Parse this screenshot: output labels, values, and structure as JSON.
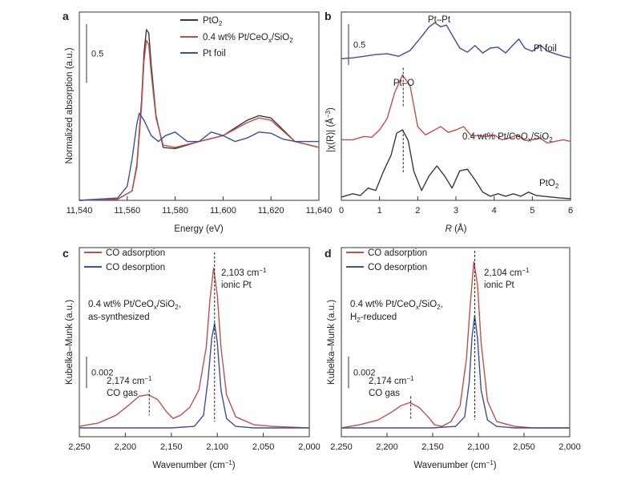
{
  "colors": {
    "black": "#3a3a3a",
    "red": "#c0504d",
    "blue": "#3b4f9a",
    "axis": "#333333"
  },
  "chart_data": [
    {
      "panel": "a",
      "type": "line",
      "xlabel": "Energy (eV)",
      "ylabel": "Normalized absorption (a.u.)",
      "xlim": [
        11540,
        11640
      ],
      "ylim": [
        0,
        1.6
      ],
      "xticks": [
        11540,
        11560,
        11580,
        11600,
        11620,
        11640
      ],
      "xtick_labels": [
        "11,540",
        "11,560",
        "11,580",
        "11,600",
        "11,620",
        "11,640"
      ],
      "scale_bar": "0.5",
      "scale_bar_value": 0.5,
      "legend": [
        "PtO2",
        "0.4 wt% Pt/CeOx/SiO2",
        "Pt foil"
      ],
      "series": [
        {
          "name": "PtO2",
          "color": "black",
          "x": [
            11540,
            11556,
            11562,
            11564,
            11566,
            11567,
            11568,
            11569,
            11570,
            11572,
            11575,
            11580,
            11590,
            11600,
            11610,
            11615,
            11620,
            11625,
            11630,
            11640
          ],
          "y": [
            0.0,
            0.01,
            0.08,
            0.3,
            0.85,
            1.25,
            1.45,
            1.42,
            1.15,
            0.72,
            0.45,
            0.44,
            0.5,
            0.55,
            0.68,
            0.72,
            0.7,
            0.6,
            0.5,
            0.45
          ]
        },
        {
          "name": "0.4 wt% Pt/CeOx/SiO2",
          "color": "red",
          "x": [
            11540,
            11556,
            11562,
            11564,
            11566,
            11567,
            11568,
            11569,
            11570,
            11572,
            11575,
            11580,
            11590,
            11600,
            11610,
            11615,
            11620,
            11625,
            11630,
            11640
          ],
          "y": [
            0.0,
            0.01,
            0.08,
            0.28,
            0.8,
            1.18,
            1.36,
            1.32,
            1.08,
            0.7,
            0.47,
            0.45,
            0.5,
            0.55,
            0.66,
            0.7,
            0.68,
            0.59,
            0.5,
            0.45
          ]
        },
        {
          "name": "Pt foil",
          "color": "blue",
          "x": [
            11540,
            11556,
            11560,
            11562,
            11564,
            11565,
            11567,
            11570,
            11573,
            11576,
            11580,
            11585,
            11590,
            11595,
            11600,
            11605,
            11610,
            11615,
            11620,
            11625,
            11630,
            11640
          ],
          "y": [
            0.0,
            0.02,
            0.12,
            0.35,
            0.65,
            0.74,
            0.68,
            0.55,
            0.5,
            0.55,
            0.58,
            0.5,
            0.5,
            0.58,
            0.55,
            0.5,
            0.53,
            0.58,
            0.57,
            0.52,
            0.5,
            0.5
          ]
        }
      ]
    },
    {
      "panel": "b",
      "type": "line",
      "xlabel": "R (Å)",
      "ylabel": "|χ(R)| (Å−3)",
      "xlim": [
        0,
        6
      ],
      "ylim": [
        0,
        2.3
      ],
      "xticks": [
        0,
        1,
        2,
        3,
        4,
        5,
        6
      ],
      "xtick_labels": [
        "0",
        "1",
        "2",
        "3",
        "4",
        "5",
        "6"
      ],
      "scale_bar": "0.5",
      "scale_bar_value": 0.5,
      "series": [
        {
          "name": "Pt foil",
          "color": "blue",
          "x": [
            0,
            0.3,
            0.6,
            0.9,
            1.2,
            1.5,
            1.8,
            2.1,
            2.3,
            2.45,
            2.6,
            2.75,
            2.9,
            3.1,
            3.3,
            3.5,
            3.7,
            3.9,
            4.1,
            4.3,
            4.5,
            4.65,
            4.8,
            5.0,
            5.2,
            5.4,
            5.6,
            5.8,
            6.0
          ],
          "y": [
            1.73,
            1.74,
            1.76,
            1.78,
            1.79,
            1.76,
            1.83,
            2.0,
            2.12,
            2.17,
            2.12,
            2.14,
            2.02,
            1.86,
            1.81,
            1.89,
            1.8,
            1.86,
            1.87,
            1.8,
            1.9,
            1.97,
            1.86,
            1.82,
            1.9,
            1.82,
            1.79,
            1.76,
            1.74
          ]
        },
        {
          "name": "0.4 wt% Pt/CeOx/SiO2",
          "color": "red",
          "x": [
            0,
            0.3,
            0.6,
            0.8,
            1.0,
            1.2,
            1.4,
            1.6,
            1.8,
            2.0,
            2.2,
            2.4,
            2.6,
            2.8,
            3.0,
            3.2,
            3.4,
            3.6,
            3.8,
            4.0,
            4.2,
            4.4,
            4.6,
            4.8,
            5.0,
            5.2,
            5.4,
            5.6,
            5.8,
            6.0
          ],
          "y": [
            0.74,
            0.74,
            0.78,
            0.77,
            0.86,
            1.0,
            1.32,
            1.53,
            1.4,
            0.9,
            0.8,
            0.85,
            0.9,
            0.83,
            0.86,
            0.9,
            0.79,
            0.79,
            0.78,
            0.8,
            0.74,
            0.76,
            0.8,
            0.73,
            0.74,
            0.76,
            0.7,
            0.72,
            0.74,
            0.72
          ]
        },
        {
          "name": "PtO2",
          "color": "black",
          "x": [
            0,
            0.3,
            0.5,
            0.7,
            0.9,
            1.1,
            1.3,
            1.45,
            1.6,
            1.75,
            1.9,
            2.1,
            2.3,
            2.5,
            2.7,
            2.9,
            3.1,
            3.3,
            3.5,
            3.7,
            3.9,
            4.1,
            4.3,
            4.5,
            4.7,
            4.9,
            5.1,
            5.3,
            5.5,
            5.7,
            6.0
          ],
          "y": [
            0.04,
            0.08,
            0.06,
            0.15,
            0.12,
            0.35,
            0.55,
            0.82,
            0.86,
            0.73,
            0.35,
            0.12,
            0.3,
            0.42,
            0.3,
            0.15,
            0.36,
            0.38,
            0.25,
            0.1,
            0.05,
            0.08,
            0.05,
            0.08,
            0.05,
            0.1,
            0.06,
            0.05,
            0.04,
            0.03,
            0.02
          ]
        }
      ]
    },
    {
      "panel": "c",
      "type": "line",
      "xlabel": "Wavenumber (cm−1)",
      "ylabel": "Kubelka–Munk (a.u.)",
      "xlim": [
        2250,
        2000
      ],
      "ylim": [
        0,
        0.0115
      ],
      "xticks": [
        2250,
        2200,
        2150,
        2100,
        2050,
        2000
      ],
      "xtick_labels": [
        "2,250",
        "2,200",
        "2,150",
        "2,100",
        "2,050",
        "2,000"
      ],
      "scale_bar": "0.002",
      "scale_bar_value": 0.002,
      "legend": [
        "CO adsorption",
        "CO desorption"
      ],
      "series": [
        {
          "name": "CO adsorption",
          "color": "red",
          "x": [
            2250,
            2230,
            2210,
            2195,
            2185,
            2175,
            2165,
            2155,
            2148,
            2140,
            2130,
            2120,
            2112,
            2108,
            2104,
            2100,
            2096,
            2090,
            2080,
            2060,
            2040,
            2000
          ],
          "y": [
            0.0002,
            0.0004,
            0.0009,
            0.0016,
            0.0021,
            0.0022,
            0.0019,
            0.0011,
            0.0007,
            0.0009,
            0.0014,
            0.0025,
            0.0052,
            0.0082,
            0.0102,
            0.0085,
            0.0052,
            0.0022,
            0.0008,
            0.0003,
            0.0002,
            0.0001
          ]
        },
        {
          "name": "CO desorption",
          "color": "blue",
          "x": [
            2250,
            2200,
            2150,
            2125,
            2115,
            2110,
            2106,
            2103,
            2100,
            2096,
            2090,
            2080,
            2060,
            2000
          ],
          "y": [
            0.0001,
            0.0001,
            0.0001,
            0.0002,
            0.0009,
            0.0032,
            0.0058,
            0.0067,
            0.0055,
            0.0025,
            0.0007,
            0.0002,
            0.0001,
            0.0001
          ]
        }
      ]
    },
    {
      "panel": "d",
      "type": "line",
      "xlabel": "Wavenumber (cm−1)",
      "ylabel": "Kubelka–Munk (a.u.)",
      "xlim": [
        2250,
        2000
      ],
      "ylim": [
        0,
        0.0115
      ],
      "xticks": [
        2250,
        2200,
        2150,
        2100,
        2050,
        2000
      ],
      "xtick_labels": [
        "2,250",
        "2,200",
        "2,150",
        "2,100",
        "2,050",
        "2,000"
      ],
      "scale_bar": "0.002",
      "scale_bar_value": 0.002,
      "legend": [
        "CO adsorption",
        "CO desorption"
      ],
      "series": [
        {
          "name": "CO adsorption",
          "color": "red",
          "x": [
            2250,
            2230,
            2210,
            2195,
            2185,
            2175,
            2165,
            2155,
            2148,
            2140,
            2130,
            2120,
            2113,
            2109,
            2105,
            2101,
            2097,
            2090,
            2080,
            2060,
            2040,
            2000
          ],
          "y": [
            0.0001,
            0.0003,
            0.0006,
            0.0011,
            0.0015,
            0.0017,
            0.0014,
            0.0008,
            0.0003,
            0.0002,
            0.0005,
            0.0015,
            0.0045,
            0.0078,
            0.0106,
            0.0092,
            0.0055,
            0.0018,
            0.0005,
            0.0002,
            0.0001,
            0.0001
          ]
        },
        {
          "name": "CO desorption",
          "color": "blue",
          "x": [
            2250,
            2200,
            2150,
            2125,
            2115,
            2110,
            2107,
            2104,
            2101,
            2097,
            2090,
            2080,
            2060,
            2000
          ],
          "y": [
            0.0001,
            0.0001,
            0.0001,
            0.0002,
            0.0008,
            0.003,
            0.0058,
            0.0072,
            0.0058,
            0.0025,
            0.0006,
            0.0002,
            0.0001,
            0.0001
          ]
        }
      ]
    }
  ],
  "labels": {
    "a": {
      "letter": "a",
      "legend": [
        {
          "main": "PtO",
          "sub": "2",
          "tail": ""
        },
        {
          "main": "0.4 wt% Pt/CeO",
          "sub": "x",
          "tail": "/SiO",
          "sub2": "2"
        },
        {
          "main": "Pt foil",
          "sub": "",
          "tail": ""
        }
      ]
    },
    "b": {
      "letter": "b",
      "pt_pt": "Pt–Pt",
      "pt_o": "Pt–O",
      "pt_foil": "Pt foil",
      "sample_main": "0.4 wt% Pt/CeO",
      "sample_sub": "x",
      "sample_tail": "/SiO",
      "sample_sub2": "2",
      "pto2_main": "PtO",
      "pto2_sub": "2",
      "xlabel_italic": "R",
      "xlabel_rest": " (Å)",
      "ylabel_text": "|χ(R)| (Å",
      "ylabel_sup": "−3",
      "ylabel_end": ")"
    },
    "c": {
      "letter": "c",
      "legend_ads": "CO adsorption",
      "legend_des": "CO desorption",
      "peak_main": "2,103 cm",
      "peak_sup": "−1",
      "peak_line2": "ionic Pt",
      "sample_line1_main": "0.4 wt% Pt/CeO",
      "sample_line1_sub": "x",
      "sample_line1_tail": "/SiO",
      "sample_line1_sub2": "2",
      "sample_line1_end": ",",
      "sample_line2": "as-synthesized",
      "gas_main": "2,174 cm",
      "gas_sup": "−1",
      "gas_line2": "CO gas",
      "xlabel_main": "Wavenumber (cm",
      "xlabel_sup": "−1",
      "xlabel_end": ")"
    },
    "d": {
      "letter": "d",
      "legend_ads": "CO adsorption",
      "legend_des": "CO desorption",
      "peak_main": "2,104 cm",
      "peak_sup": "−1",
      "peak_line2": "ionic Pt",
      "sample_line1_main": "0.4 wt% Pt/CeO",
      "sample_line1_sub": "x",
      "sample_line1_tail": "/SiO",
      "sample_line1_sub2": "2",
      "sample_line1_end": ",",
      "sample_line2_main": "H",
      "sample_line2_sub": "2",
      "sample_line2_tail": "-reduced",
      "gas_main": "2,174 cm",
      "gas_sup": "−1",
      "gas_line2": "CO gas",
      "xlabel_main": "Wavenumber (cm",
      "xlabel_sup": "−1",
      "xlabel_end": ")"
    }
  }
}
